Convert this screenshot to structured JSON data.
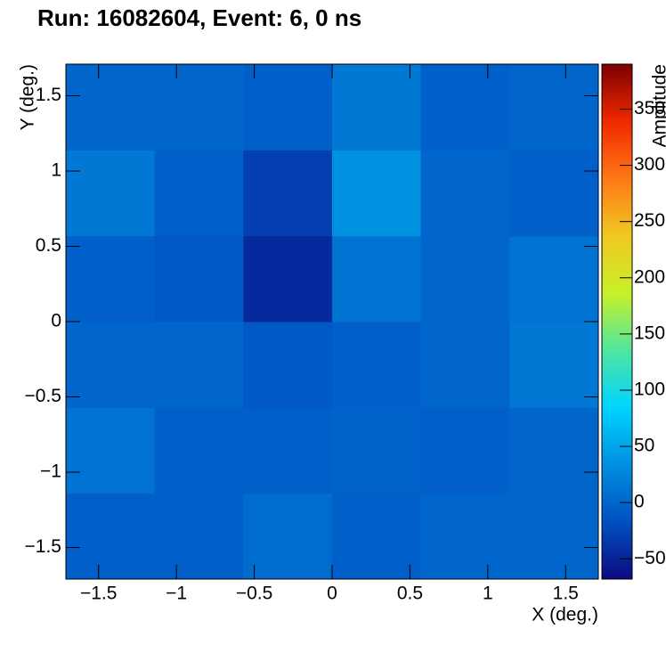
{
  "chart_data": {
    "type": "heatmap",
    "title": "Run: 16082604, Event: 6, 0 ns",
    "x_label": "X (deg.)",
    "y_label": "Y (deg.)",
    "z_label": "Amplitude",
    "x_edges": [
      -1.71,
      -1.14,
      -0.57,
      0,
      0.57,
      1.14,
      1.71
    ],
    "y_edges": [
      -1.71,
      -1.14,
      -0.57,
      0,
      0.57,
      1.14,
      1.71
    ],
    "z": [
      [
        -5,
        -5,
        5,
        -5,
        0,
        0
      ],
      [
        10,
        -5,
        -5,
        -2,
        -5,
        0
      ],
      [
        0,
        0,
        -10,
        -5,
        0,
        15
      ],
      [
        -5,
        -10,
        -45,
        10,
        0,
        10
      ],
      [
        15,
        -5,
        -30,
        35,
        0,
        -5
      ],
      [
        0,
        0,
        -5,
        15,
        -5,
        0
      ]
    ],
    "xlim": [
      -1.71,
      1.71
    ],
    "ylim": [
      -1.71,
      1.71
    ],
    "zlim": [
      -68,
      390
    ],
    "xticks": [
      {
        "value": -1.5,
        "label": "−1.5"
      },
      {
        "value": -1,
        "label": "−1"
      },
      {
        "value": -0.5,
        "label": "−0.5"
      },
      0,
      0.5,
      1,
      1.5
    ],
    "yticks": [
      {
        "value": -1.5,
        "label": "−1.5"
      },
      {
        "value": -1,
        "label": "−1"
      },
      {
        "value": -0.5,
        "label": "−0.5"
      },
      0,
      0.5,
      1,
      1.5
    ],
    "zticks": [
      {
        "value": -50,
        "label": "−50"
      },
      0,
      50,
      100,
      150,
      200,
      250,
      300,
      350
    ],
    "colormap": [
      "#0b0b80",
      "#0050c0",
      "#0090e0",
      "#00d4ff",
      "#50e6a0",
      "#c8f028",
      "#f0c820",
      "#ff7818",
      "#f02800",
      "#7c0000"
    ]
  }
}
